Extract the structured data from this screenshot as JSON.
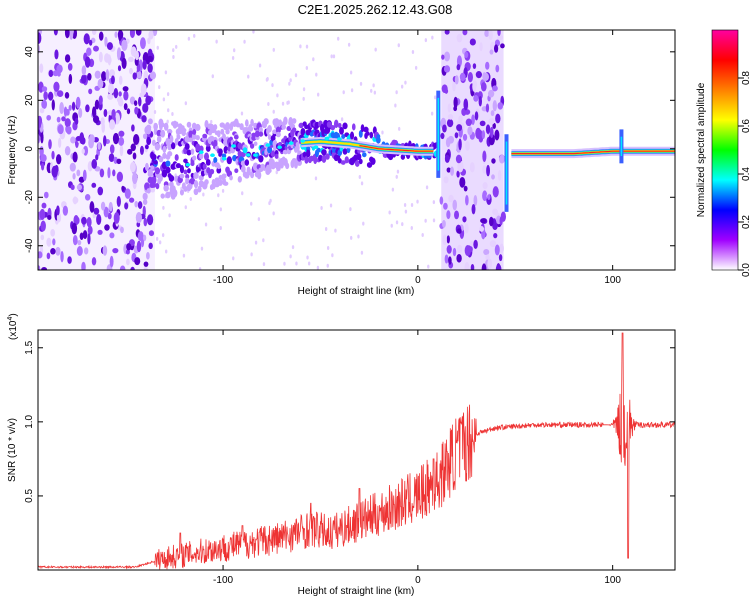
{
  "title": "C2E1.2025.262.12.43.G08",
  "chart_data": [
    {
      "type": "heatmap",
      "name": "spectrogram",
      "xlabel": "Height of straight line (km)",
      "ylabel": "Frequency (Hz)",
      "xlim": [
        -195,
        132
      ],
      "ylim": [
        -50,
        49
      ],
      "x_ticks": [
        -100,
        0,
        100
      ],
      "x_tick_labels": [
        "-100",
        "0",
        "100"
      ],
      "y_ticks": [
        -40,
        -20,
        0,
        20,
        40
      ],
      "y_tick_labels": [
        "-40",
        "-20",
        "0",
        "20",
        "40"
      ],
      "colorbar": {
        "label": "Normalized spectral amplitude",
        "range": [
          0,
          1
        ],
        "ticks": [
          0.0,
          0.2,
          0.4,
          0.6,
          0.8
        ],
        "tick_labels": [
          "0.0",
          "0.2",
          "0.4",
          "0.6",
          "0.8"
        ],
        "colors": [
          "#ffffff",
          "#a000ff",
          "#0000ff",
          "#00ffff",
          "#00ff00",
          "#ffff00",
          "#ff8000",
          "#ff0000",
          "#ff00a0"
        ]
      },
      "ridge": [
        {
          "x": -130,
          "f": -5
        },
        {
          "x": -110,
          "f": -3
        },
        {
          "x": -90,
          "f": -1
        },
        {
          "x": -70,
          "f": 2
        },
        {
          "x": -50,
          "f": 3
        },
        {
          "x": -35,
          "f": 2
        },
        {
          "x": -20,
          "f": 0
        },
        {
          "x": 0,
          "f": -1
        },
        {
          "x": 8,
          "f": -1
        },
        {
          "x": 48,
          "f": -2
        },
        {
          "x": 80,
          "f": -2
        },
        {
          "x": 100,
          "f": -1
        },
        {
          "x": 132,
          "f": -1
        }
      ],
      "noise_regions": [
        [
          -195,
          -135
        ],
        [
          12,
          44
        ]
      ]
    },
    {
      "type": "line",
      "name": "snr",
      "xlabel": "Height of straight line (km)",
      "ylabel": "SNR (10 * v/v)",
      "y_multiplier": "(x10",
      "y_multiplier_exp": "4",
      "y_multiplier_close": ")",
      "xlim": [
        -195,
        132
      ],
      "ylim": [
        0,
        1.62
      ],
      "x_ticks": [
        -100,
        0,
        100
      ],
      "x_tick_labels": [
        "-100",
        "0",
        "100"
      ],
      "y_ticks": [
        0.5,
        1.0,
        1.5
      ],
      "y_tick_labels": [
        "0.5",
        "1.0",
        "1.5"
      ],
      "color": "#ee3333",
      "envelope": [
        {
          "x": -195,
          "y": 0.02
        },
        {
          "x": -145,
          "y": 0.02
        },
        {
          "x": -130,
          "y": 0.08
        },
        {
          "x": -100,
          "y": 0.15
        },
        {
          "x": -70,
          "y": 0.22
        },
        {
          "x": -55,
          "y": 0.28
        },
        {
          "x": -45,
          "y": 0.25
        },
        {
          "x": -20,
          "y": 0.38
        },
        {
          "x": 0,
          "y": 0.5
        },
        {
          "x": 10,
          "y": 0.6
        },
        {
          "x": 20,
          "y": 0.8
        },
        {
          "x": 30,
          "y": 0.92
        },
        {
          "x": 40,
          "y": 0.96
        },
        {
          "x": 60,
          "y": 0.98
        },
        {
          "x": 90,
          "y": 0.98
        },
        {
          "x": 100,
          "y": 0.98
        },
        {
          "x": 132,
          "y": 0.98
        }
      ],
      "peaks": [
        {
          "x": -122,
          "y": 0.25
        },
        {
          "x": -90,
          "y": 0.3
        },
        {
          "x": -55,
          "y": 0.45
        },
        {
          "x": -30,
          "y": 0.55
        },
        {
          "x": 8,
          "y": 0.75
        },
        {
          "x": 15,
          "y": 0.8
        },
        {
          "x": 105,
          "y": 1.6
        },
        {
          "x": 108,
          "y": 0.08
        }
      ]
    }
  ]
}
